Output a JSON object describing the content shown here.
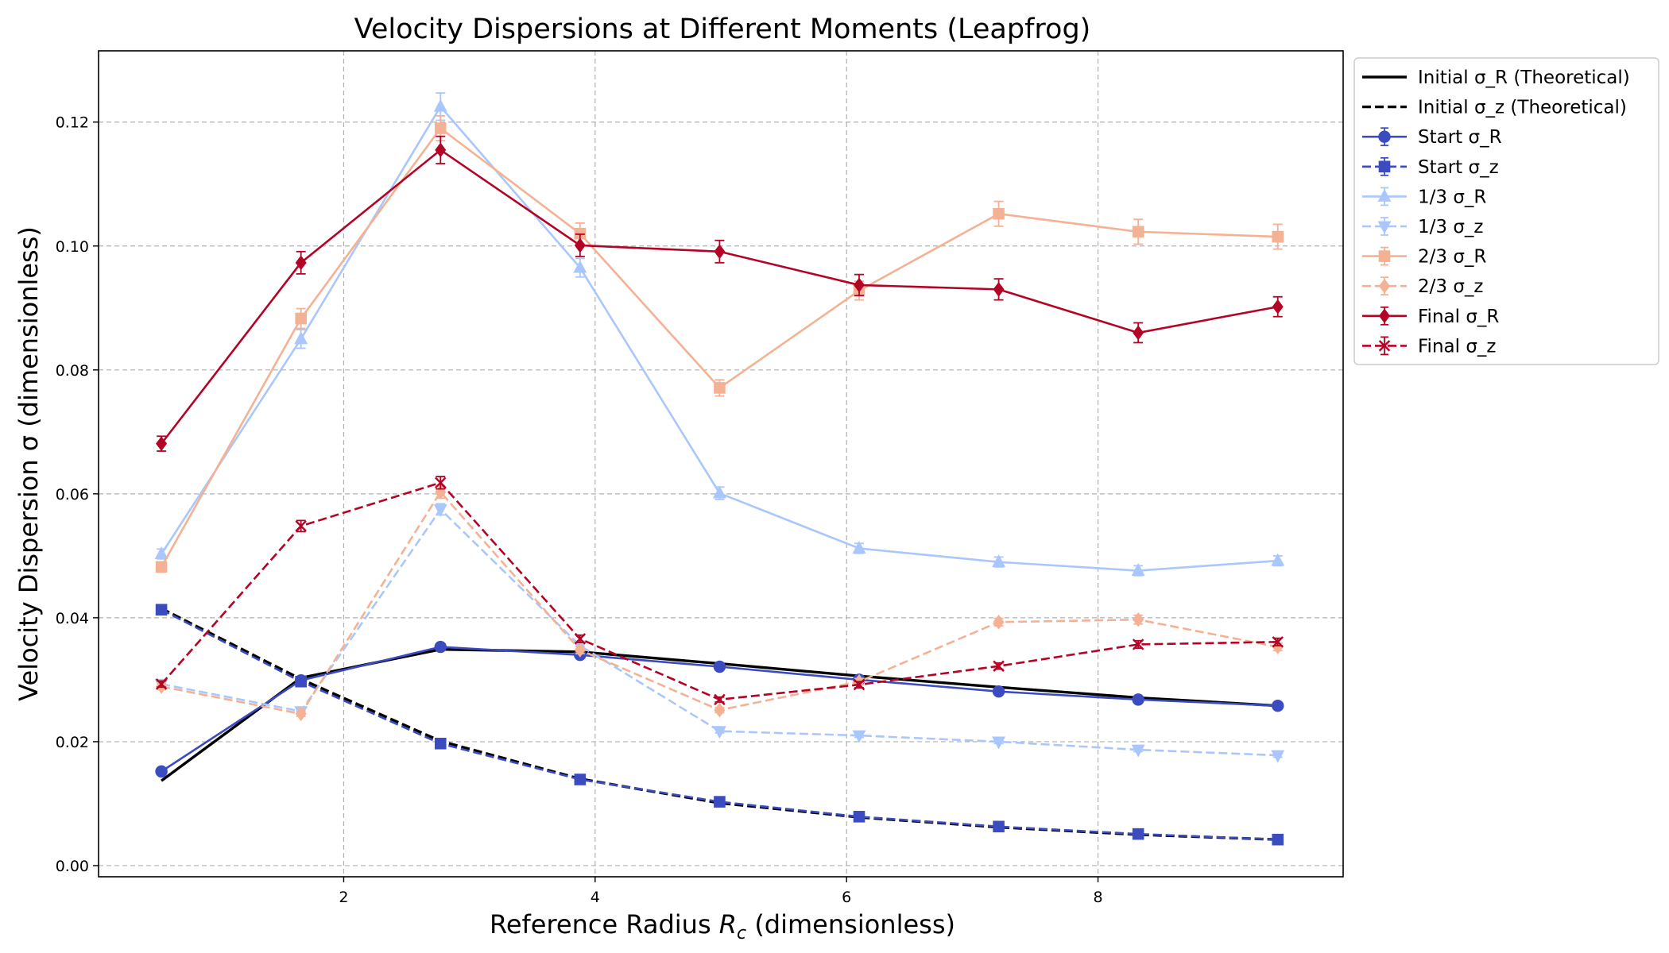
{
  "chart_data": {
    "type": "line",
    "title": "Velocity Dispersions at Different Moments (Leapfrog)",
    "xlabel": "Reference Radius",
    "xlabel_symbol": "R",
    "xlabel_sub": "c",
    "xlabel_suffix": "(dimensionless)",
    "ylabel": "Velocity Dispersion σ (dimensionless)",
    "xlim": [
      0.05,
      9.95
    ],
    "ylim": [
      -0.0018,
      0.1315
    ],
    "xticks": [
      2,
      4,
      6,
      8
    ],
    "xtick_labels": [
      "2",
      "4",
      "6",
      "8"
    ],
    "yticks": [
      0,
      0.02,
      0.04,
      0.06,
      0.08,
      0.1,
      0.12
    ],
    "ytick_labels": [
      "0.00",
      "0.02",
      "0.04",
      "0.06",
      "0.08",
      "0.10",
      "0.12"
    ],
    "grid": true,
    "legend_position": "outside right, top",
    "x": [
      0.55,
      1.66,
      2.77,
      3.88,
      4.99,
      6.1,
      7.21,
      8.32,
      9.43
    ],
    "series": [
      {
        "name": "Initial σ_R (Theoretical)",
        "color": "#000000",
        "dash": "solid",
        "marker": "none",
        "values": [
          0.0137,
          0.0303,
          0.0349,
          0.0345,
          0.0326,
          0.0306,
          0.0288,
          0.0271,
          0.0258
        ],
        "err": null
      },
      {
        "name": "Initial σ_z (Theoretical)",
        "color": "#000000",
        "dash": "dashed",
        "marker": "none",
        "values": [
          0.0415,
          0.0301,
          0.0201,
          0.014,
          0.0101,
          0.0078,
          0.0062,
          0.005,
          0.0042
        ],
        "err": null
      },
      {
        "name": "Start σ_R",
        "color": "#3b4cc0",
        "dash": "solid",
        "marker": "circle",
        "values": [
          0.0152,
          0.0299,
          0.0353,
          0.034,
          0.0321,
          0.03,
          0.0281,
          0.0268,
          0.0258
        ],
        "err": [
          0.0003,
          0.0003,
          0.0004,
          0.0003,
          0.0003,
          0.0003,
          0.0003,
          0.0003,
          0.0003
        ]
      },
      {
        "name": "Start σ_z",
        "color": "#3b4cc0",
        "dash": "dashed",
        "marker": "square",
        "values": [
          0.0413,
          0.0297,
          0.0197,
          0.0139,
          0.0103,
          0.0079,
          0.0063,
          0.0051,
          0.0042
        ],
        "err": [
          0.0004,
          0.0003,
          0.0002,
          0.0002,
          0.0002,
          0.0001,
          0.0001,
          0.0001,
          0.0001
        ]
      },
      {
        "name": "1/3 σ_R",
        "color": "#aac7fd",
        "dash": "solid",
        "marker": "triangle-up",
        "values": [
          0.0503,
          0.085,
          0.1225,
          0.0965,
          0.0601,
          0.0512,
          0.049,
          0.0476,
          0.0492
        ],
        "err": [
          0.0008,
          0.0015,
          0.0022,
          0.0015,
          0.001,
          0.0008,
          0.0008,
          0.0008,
          0.0008
        ]
      },
      {
        "name": "1/3 σ_z",
        "color": "#aac7fd",
        "dash": "dashed",
        "marker": "triangle-down",
        "values": [
          0.0293,
          0.0249,
          0.0575,
          0.0355,
          0.0217,
          0.021,
          0.02,
          0.0187,
          0.0178
        ],
        "err": [
          0.0005,
          0.0004,
          0.0009,
          0.0006,
          0.0003,
          0.0003,
          0.0003,
          0.0003,
          0.0003
        ]
      },
      {
        "name": "2/3 σ_R",
        "color": "#f5b194",
        "dash": "solid",
        "marker": "square",
        "values": [
          0.0482,
          0.0883,
          0.119,
          0.102,
          0.0771,
          0.0928,
          0.1052,
          0.1023,
          0.1015
        ],
        "err": [
          0.0008,
          0.0016,
          0.002,
          0.0017,
          0.0013,
          0.0015,
          0.002,
          0.002,
          0.002
        ]
      },
      {
        "name": "2/3 σ_z",
        "color": "#f5b194",
        "dash": "dashed",
        "marker": "diamond",
        "values": [
          0.0289,
          0.0245,
          0.0603,
          0.0348,
          0.0251,
          0.0297,
          0.0393,
          0.0397,
          0.0353
        ],
        "err": [
          0.0005,
          0.0004,
          0.001,
          0.0006,
          0.0004,
          0.0005,
          0.0006,
          0.0007,
          0.0006
        ]
      },
      {
        "name": "Final σ_R",
        "color": "#b40426",
        "dash": "solid",
        "marker": "diamond",
        "values": [
          0.0681,
          0.0973,
          0.1155,
          0.1001,
          0.0991,
          0.0937,
          0.093,
          0.086,
          0.0902
        ],
        "err": [
          0.0012,
          0.0018,
          0.0022,
          0.0018,
          0.0018,
          0.0017,
          0.0017,
          0.0016,
          0.0016
        ]
      },
      {
        "name": "Final σ_z",
        "color": "#b40426",
        "dash": "dashed",
        "marker": "x",
        "values": [
          0.0293,
          0.0548,
          0.0618,
          0.0366,
          0.0268,
          0.0292,
          0.0322,
          0.0357,
          0.0361
        ],
        "err": [
          0.0005,
          0.0009,
          0.001,
          0.0006,
          0.0004,
          0.0005,
          0.0005,
          0.0006,
          0.0006
        ]
      }
    ]
  }
}
